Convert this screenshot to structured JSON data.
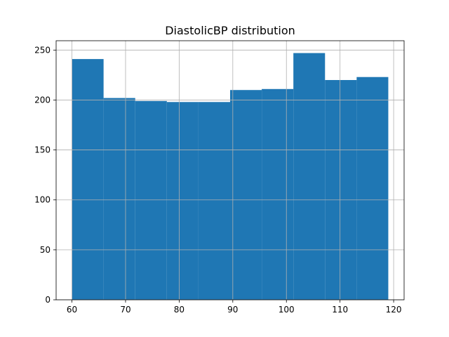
{
  "chart_data": {
    "type": "bar",
    "title": "DiastolicBP distribution",
    "xlabel": "",
    "ylabel": "",
    "bins": [
      {
        "start": 60.0,
        "end": 65.9,
        "count": 241
      },
      {
        "start": 65.9,
        "end": 71.8,
        "count": 202
      },
      {
        "start": 71.8,
        "end": 77.7,
        "count": 199
      },
      {
        "start": 77.7,
        "end": 83.6,
        "count": 198
      },
      {
        "start": 83.6,
        "end": 89.5,
        "count": 198
      },
      {
        "start": 89.5,
        "end": 95.4,
        "count": 210
      },
      {
        "start": 95.4,
        "end": 101.3,
        "count": 211
      },
      {
        "start": 101.3,
        "end": 107.2,
        "count": 247
      },
      {
        "start": 107.2,
        "end": 113.1,
        "count": 220
      },
      {
        "start": 113.1,
        "end": 119.0,
        "count": 223
      }
    ],
    "xlim": [
      57.05,
      121.95
    ],
    "ylim": [
      0,
      259.35
    ],
    "xticks": [
      60,
      70,
      80,
      90,
      100,
      110,
      120
    ],
    "yticks": [
      0,
      50,
      100,
      150,
      200,
      250
    ],
    "grid": true,
    "bar_color": "#1f77b4"
  }
}
